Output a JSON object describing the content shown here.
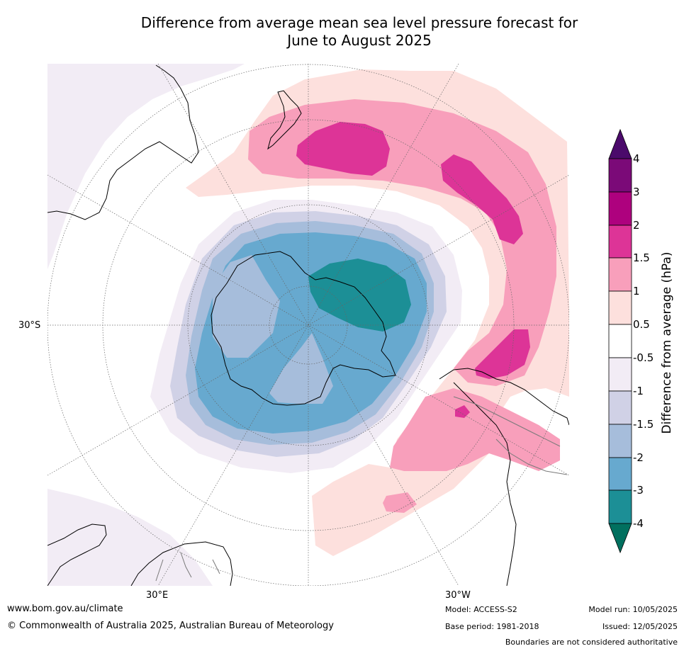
{
  "title_line1": "Difference from average mean sea level pressure forecast for",
  "title_line2": "June to August 2025",
  "map": {
    "projection": "south-polar-stereographic",
    "lat_label": "30°S",
    "lon_label_left": "30°E",
    "lon_label_right": "30°W"
  },
  "colorbar": {
    "label": "Difference from average (hPa)",
    "ticks": [
      "4",
      "3",
      "2",
      "1.5",
      "1",
      "0.5",
      "-0.5",
      "-1",
      "-1.5",
      "-2",
      "-3",
      "-4"
    ],
    "colors": {
      "above_4": "#4b0a6b",
      "3_to_4": "#7b0a78",
      "2_to_3": "#ae017e",
      "1.5_to_2": "#dd3497",
      "1_to_1.5": "#f89fbb",
      "0.5_to_1": "#fde0dd",
      "neutral": "#ffffff",
      "-1_to_-0.5": "#f2ecf5",
      "-1.5_to_-1": "#d0d1e6",
      "-2_to_-1.5": "#a6bddb",
      "-3_to_-2": "#67a9cf",
      "-4_to_-3": "#1c8f96",
      "below_-4": "#01705f"
    }
  },
  "footer": {
    "website": "www.bom.gov.au/climate",
    "copyright": "© Commonwealth of Australia 2025, Australian Bureau of Meteorology",
    "model": "Model: ACCESS-S2",
    "base_period": "Base period: 1981-2018",
    "model_run": "Model run: 10/05/2025",
    "issued": "Issued: 12/05/2025",
    "disclaimer": "Boundaries are not considered authoritative"
  }
}
